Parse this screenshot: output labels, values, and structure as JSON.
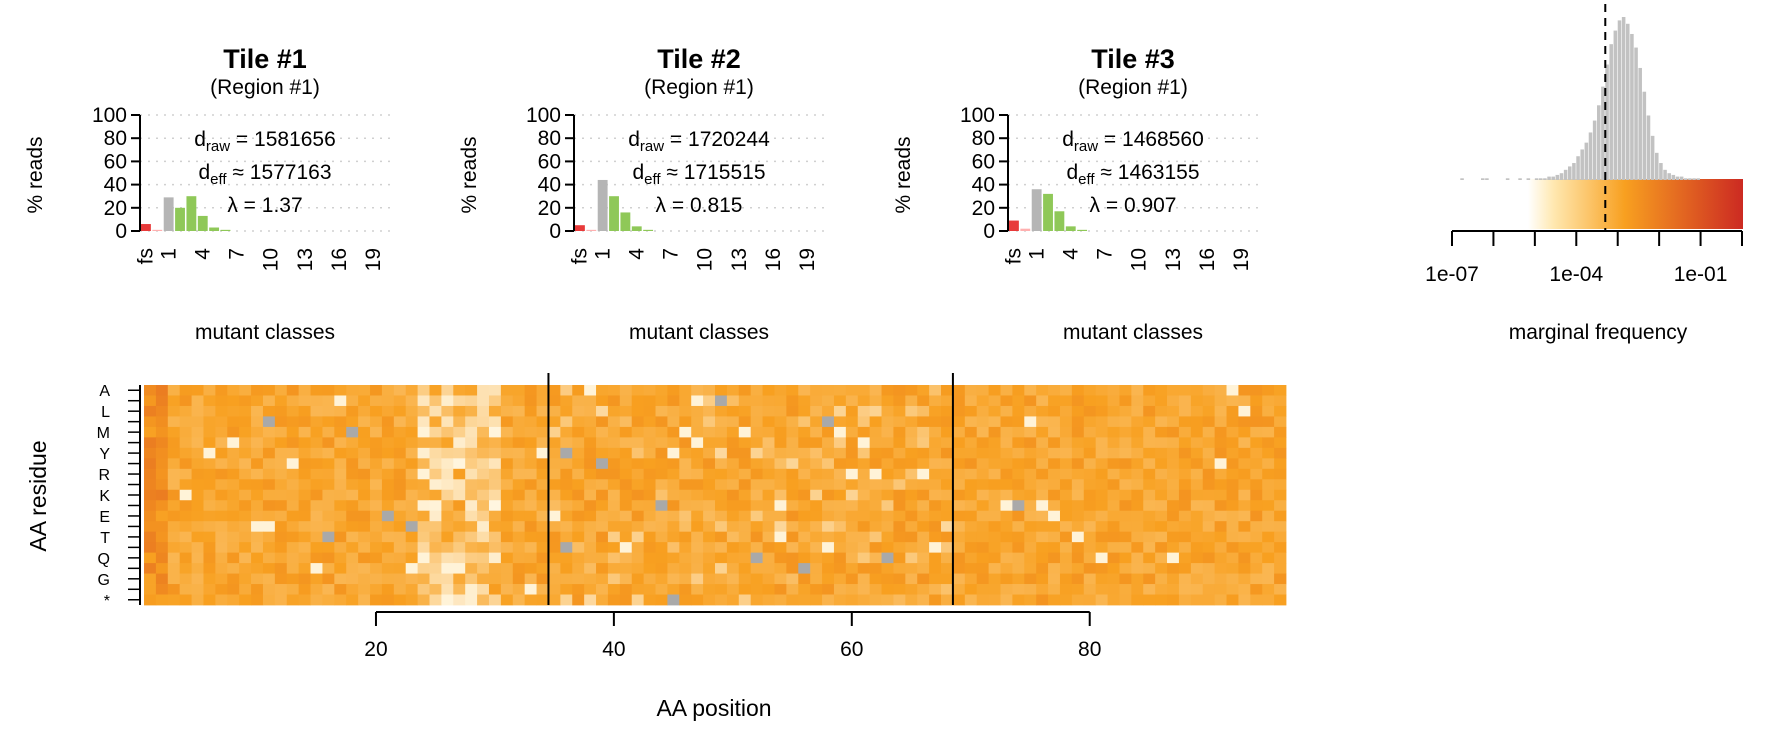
{
  "colors": {
    "frameshift": "#e83a3a",
    "wildtype": "#b5b5b5",
    "mutant": "#8fc858",
    "missing": "#a9a9a9",
    "heat_low": "#fff6e0",
    "heat_mid": "#f8a020",
    "heat_high": "#cc2a22",
    "histogram": "#c2c2c2",
    "grid": "#d0d0d0"
  },
  "chart_data": [
    {
      "type": "bar",
      "title": "Tile #1",
      "subtitle": "(Region #1)",
      "ylabel": "% reads",
      "xlabel": "mutant classes",
      "ylim": [
        0,
        100
      ],
      "yticks": [
        0,
        20,
        40,
        60,
        80,
        100
      ],
      "xtick_labels": [
        "fs",
        "1",
        "4",
        "7",
        "10",
        "13",
        "16",
        "19"
      ],
      "d_raw": "1581656",
      "d_eff": "1577163",
      "lambda": "1.37",
      "values": [
        6,
        1,
        29,
        20,
        30,
        13,
        3,
        1,
        0,
        0,
        0,
        0,
        0,
        0,
        0,
        0,
        0,
        0,
        0,
        0,
        0,
        0
      ]
    },
    {
      "type": "bar",
      "title": "Tile #2",
      "subtitle": "(Region #1)",
      "ylabel": "% reads",
      "xlabel": "mutant classes",
      "ylim": [
        0,
        100
      ],
      "yticks": [
        0,
        20,
        40,
        60,
        80,
        100
      ],
      "xtick_labels": [
        "fs",
        "1",
        "4",
        "7",
        "10",
        "13",
        "16",
        "19"
      ],
      "d_raw": "1720244",
      "d_eff": "1715515",
      "lambda": "0.815",
      "values": [
        5,
        1,
        44,
        30,
        16,
        4,
        1,
        0,
        0,
        0,
        0,
        0,
        0,
        0,
        0,
        0,
        0,
        0,
        0,
        0,
        0,
        0
      ]
    },
    {
      "type": "bar",
      "title": "Tile #3",
      "subtitle": "(Region #1)",
      "ylabel": "% reads",
      "xlabel": "mutant classes",
      "ylim": [
        0,
        100
      ],
      "yticks": [
        0,
        20,
        40,
        60,
        80,
        100
      ],
      "xtick_labels": [
        "fs",
        "1",
        "4",
        "7",
        "10",
        "13",
        "16",
        "19"
      ],
      "d_raw": "1468560",
      "d_eff": "1463155",
      "lambda": "0.907",
      "values": [
        9,
        2,
        36,
        32,
        17,
        4,
        1,
        0,
        0,
        0,
        0,
        0,
        0,
        0,
        0,
        0,
        0,
        0,
        0,
        0,
        0,
        0
      ]
    },
    {
      "type": "histogram",
      "xlabel": "marginal frequency",
      "x_scale": "log10",
      "xlim": [
        -7,
        0
      ],
      "xtick_labels": [
        "1e-07",
        "1e-04",
        "1e-01"
      ],
      "threshold_log10": -3.3,
      "bins_log10_start": -7,
      "bin_width_log10": 0.1,
      "counts": [
        0,
        0,
        1,
        0,
        0,
        0,
        0,
        1,
        1,
        0,
        0,
        0,
        0,
        1,
        0,
        0,
        1,
        0,
        1,
        0,
        1,
        1,
        1,
        2,
        2,
        3,
        4,
        6,
        8,
        10,
        14,
        18,
        22,
        28,
        35,
        44,
        55,
        68,
        80,
        88,
        94,
        96,
        92,
        86,
        78,
        66,
        52,
        38,
        26,
        16,
        10,
        6,
        4,
        3,
        2,
        2,
        1,
        1,
        1,
        1,
        0,
        0,
        0,
        0,
        0,
        0,
        0,
        0,
        0,
        0
      ]
    },
    {
      "type": "heatmap",
      "xlabel": "AA position",
      "ylabel": "AA residue",
      "row_labels": [
        "A",
        "L",
        "M",
        "Y",
        "R",
        "K",
        "E",
        "T",
        "Q",
        "G",
        "*"
      ],
      "n_rows": 21,
      "n_cols": 96,
      "x_start": 1,
      "xtick_values": [
        20,
        40,
        60,
        80
      ],
      "xtick_labels": [
        "20",
        "40",
        "60",
        "80"
      ],
      "tile_boundaries": [
        34.5,
        68.5
      ]
    }
  ]
}
